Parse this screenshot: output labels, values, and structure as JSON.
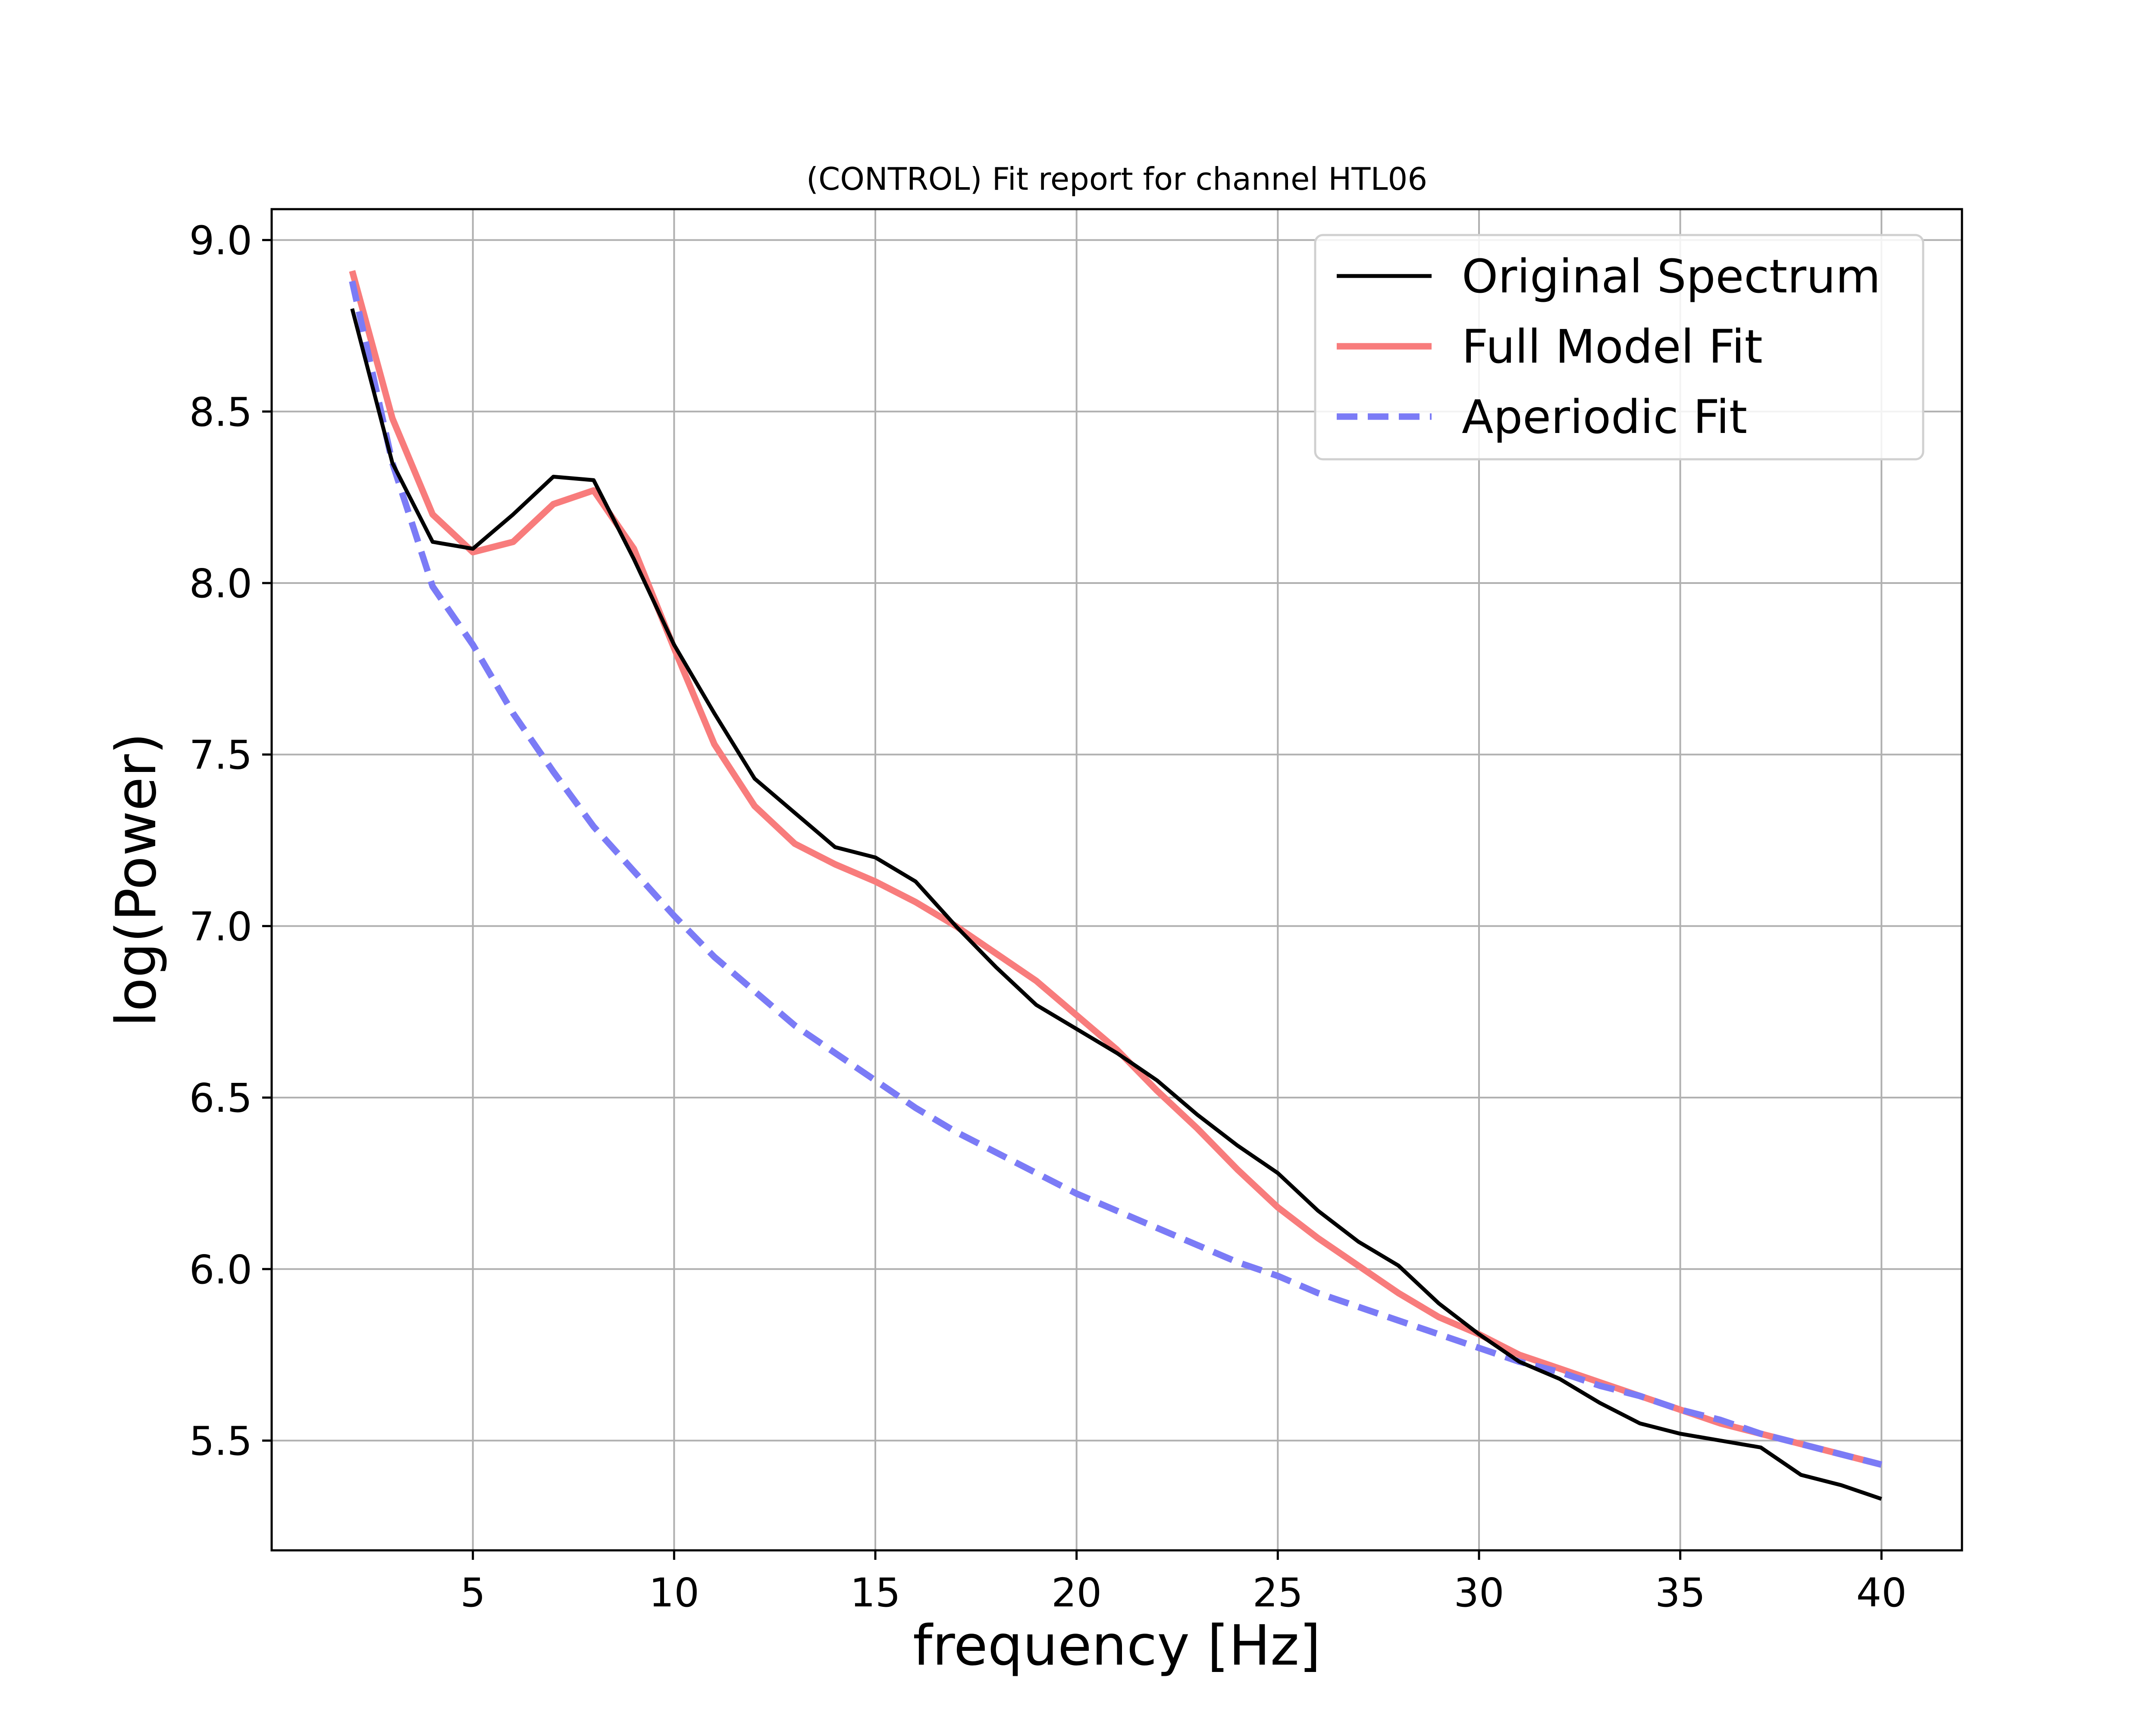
{
  "chart_data": {
    "type": "line",
    "title": "(CONTROL) Fit report for channel HTL06",
    "xlabel": "frequency [Hz]",
    "ylabel": "log(Power)",
    "xlim": [
      0,
      42
    ],
    "ylim": [
      5.18,
      9.09
    ],
    "xticks": [
      5,
      10,
      15,
      20,
      25,
      30,
      35,
      40
    ],
    "yticks": [
      5.5,
      6.0,
      6.5,
      7.0,
      7.5,
      8.0,
      8.5,
      9.0
    ],
    "xtick_labels": [
      "5",
      "10",
      "15",
      "20",
      "25",
      "30",
      "35",
      "40"
    ],
    "ytick_labels": [
      "5.5",
      "6.0",
      "6.5",
      "7.0",
      "7.5",
      "8.0",
      "8.5",
      "9.0"
    ],
    "grid": true,
    "legend_position": "top-right",
    "x": [
      2,
      3,
      4,
      5,
      6,
      7,
      8,
      9,
      10,
      11,
      12,
      13,
      14,
      15,
      16,
      17,
      18,
      19,
      20,
      21,
      22,
      23,
      24,
      25,
      26,
      27,
      28,
      29,
      30,
      31,
      32,
      33,
      34,
      35,
      36,
      37,
      38,
      39,
      40
    ],
    "series": [
      {
        "name": "Original Spectrum",
        "color": "#000000",
        "style": "solid",
        "values": [
          8.8,
          8.35,
          8.12,
          8.1,
          8.2,
          8.31,
          8.3,
          8.07,
          7.82,
          7.62,
          7.43,
          7.33,
          7.23,
          7.2,
          7.13,
          7.0,
          6.88,
          6.77,
          6.7,
          6.63,
          6.55,
          6.45,
          6.36,
          6.28,
          6.17,
          6.08,
          6.01,
          5.9,
          5.81,
          5.73,
          5.68,
          5.61,
          5.55,
          5.52,
          5.5,
          5.48,
          5.4,
          5.37,
          5.33
        ]
      },
      {
        "name": "Full Model Fit",
        "color": "#f87c7c",
        "style": "solid",
        "values": [
          8.91,
          8.48,
          8.2,
          8.09,
          8.12,
          8.23,
          8.27,
          8.1,
          7.81,
          7.53,
          7.35,
          7.24,
          7.18,
          7.13,
          7.07,
          7.0,
          6.92,
          6.84,
          6.74,
          6.64,
          6.52,
          6.41,
          6.29,
          6.18,
          6.09,
          6.01,
          5.93,
          5.86,
          5.81,
          5.75,
          5.71,
          5.67,
          5.63,
          5.59,
          5.55,
          5.52,
          5.49,
          5.46,
          5.43
        ]
      },
      {
        "name": "Aperiodic Fit",
        "color": "#7b7bf6",
        "style": "dashed",
        "values": [
          8.88,
          8.35,
          7.99,
          7.82,
          7.62,
          7.45,
          7.29,
          7.16,
          7.03,
          6.91,
          6.81,
          6.71,
          6.63,
          6.55,
          6.47,
          6.4,
          6.34,
          6.28,
          6.22,
          6.17,
          6.12,
          6.07,
          6.02,
          5.98,
          5.93,
          5.89,
          5.85,
          5.81,
          5.77,
          5.73,
          5.7,
          5.66,
          5.63,
          5.59,
          5.56,
          5.52,
          5.49,
          5.46,
          5.43
        ]
      }
    ]
  }
}
